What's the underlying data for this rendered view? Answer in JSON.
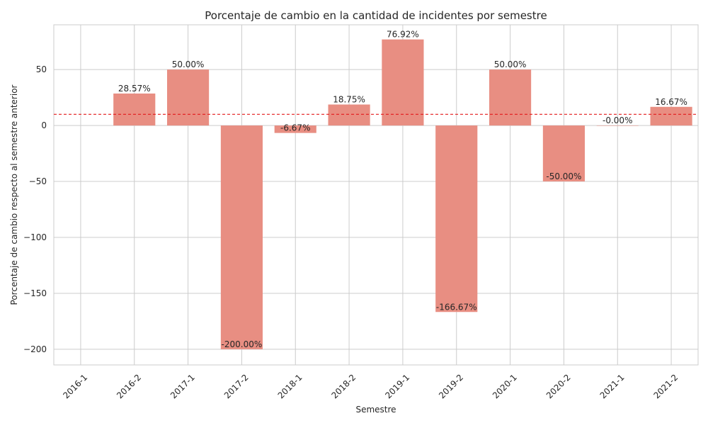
{
  "chart_data": {
    "type": "bar",
    "title": "Porcentaje de cambio en la cantidad de incidentes por semestre",
    "xlabel": "Semestre",
    "ylabel": "Porcentaje de cambio respecto al semestre anterior",
    "categories": [
      "2016-1",
      "2016-2",
      "2017-1",
      "2017-2",
      "2018-1",
      "2018-2",
      "2019-1",
      "2019-2",
      "2020-1",
      "2020-2",
      "2021-1",
      "2021-2"
    ],
    "values": [
      null,
      28.57,
      50.0,
      -200.0,
      -6.67,
      18.75,
      76.92,
      -166.67,
      50.0,
      -50.0,
      -0.0,
      16.67
    ],
    "data_labels": [
      "",
      "28.57%",
      "50.00%",
      "-200.00%",
      "-6.67%",
      "18.75%",
      "76.92%",
      "-166.67%",
      "50.00%",
      "-50.00%",
      "-0.00%",
      "16.67%"
    ],
    "reference_line": {
      "value": 10,
      "style": "dashed",
      "color": "#e41a1c"
    },
    "ylim": [
      -214,
      90
    ],
    "yticks": [
      -200,
      -150,
      -100,
      -50,
      0,
      50
    ],
    "ytick_labels": [
      "−200",
      "−150",
      "−100",
      "−50",
      "0",
      "50"
    ],
    "grid": true,
    "legend": "none",
    "colors": {
      "bar": "#e88e82",
      "grid": "#cccccc",
      "axis_text": "#262626"
    }
  }
}
